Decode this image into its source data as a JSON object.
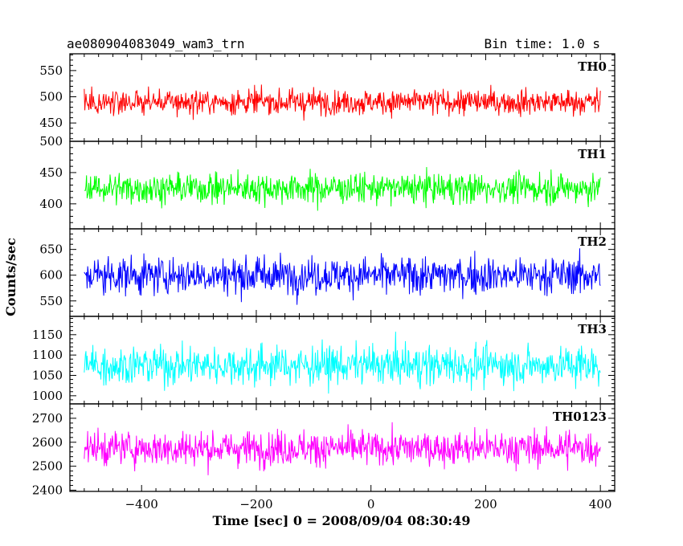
{
  "chart_data": {
    "type": "line",
    "title_left": "ae080904083049_wam3_trn",
    "title_right": "Bin time: 1.0 s",
    "xlabel": "Time [sec] 0 = 2008/09/04 08:30:49",
    "ylabel": "Counts/sec",
    "xlim": [
      -525,
      425
    ],
    "x_start": -500,
    "x_end": 400,
    "x_step": 1,
    "xticks": [
      -400,
      -200,
      0,
      200,
      400
    ],
    "xtick_labels": [
      "−400",
      "−200",
      "0",
      "200",
      "400"
    ],
    "panels": [
      {
        "name": "TH0",
        "color": "#ff0000",
        "ylim": [
          415,
          582
        ],
        "mean": 490,
        "noise": 20,
        "yticks": [
          450,
          500,
          550
        ],
        "ytick_labels": [
          "450",
          "500",
          "550"
        ]
      },
      {
        "name": "TH1",
        "color": "#00ff00",
        "ylim": [
          360,
          500
        ],
        "mean": 425,
        "noise": 20,
        "yticks": [
          400,
          450,
          500
        ],
        "ytick_labels": [
          "400",
          "450",
          "500"
        ]
      },
      {
        "name": "TH2",
        "color": "#0000ff",
        "ylim": [
          520,
          690
        ],
        "mean": 600,
        "noise": 30,
        "yticks": [
          550,
          600,
          650
        ],
        "ytick_labels": [
          "550",
          "600",
          "650"
        ]
      },
      {
        "name": "TH3",
        "color": "#00ffff",
        "ylim": [
          980,
          1195
        ],
        "mean": 1075,
        "noise": 40,
        "yticks": [
          1000,
          1050,
          1100,
          1150
        ],
        "ytick_labels": [
          "1000",
          "1050",
          "1100",
          "1150"
        ]
      },
      {
        "name": "TH0123",
        "color": "#ff00ff",
        "ylim": [
          2395,
          2760
        ],
        "mean": 2575,
        "noise": 60,
        "yticks": [
          2400,
          2500,
          2600,
          2700
        ],
        "ytick_labels": [
          "2400",
          "2500",
          "2600",
          "2700"
        ]
      }
    ]
  }
}
